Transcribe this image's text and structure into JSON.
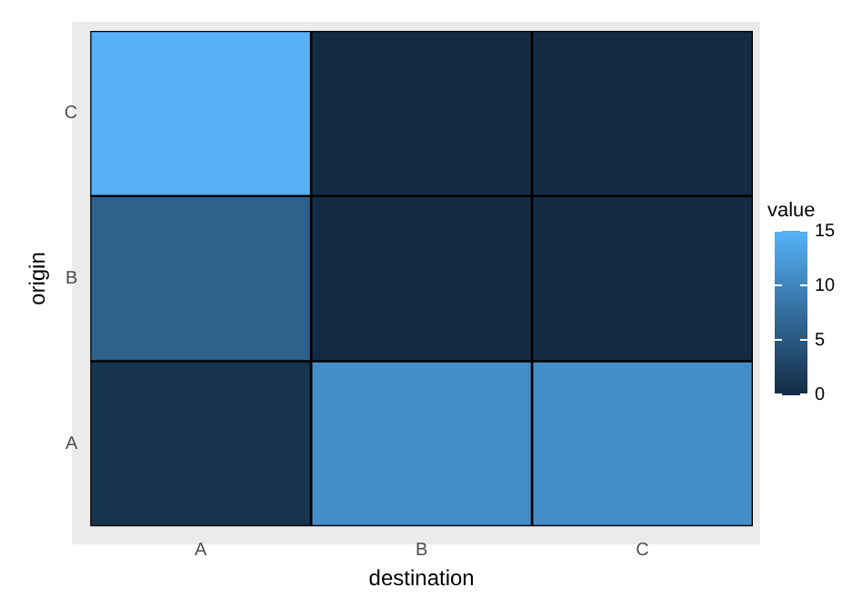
{
  "chart_data": {
    "type": "heatmap",
    "xlabel": "destination",
    "ylabel": "origin",
    "legend_title": "value",
    "categories": [
      "A",
      "B",
      "C"
    ],
    "y_categories": [
      "C",
      "B",
      "A"
    ],
    "cells": [
      [
        15,
        0,
        0
      ],
      [
        6,
        0,
        0
      ],
      [
        1,
        11,
        11
      ]
    ],
    "clim": [
      0,
      15
    ],
    "cticks": [
      0,
      5,
      10,
      15
    ]
  }
}
